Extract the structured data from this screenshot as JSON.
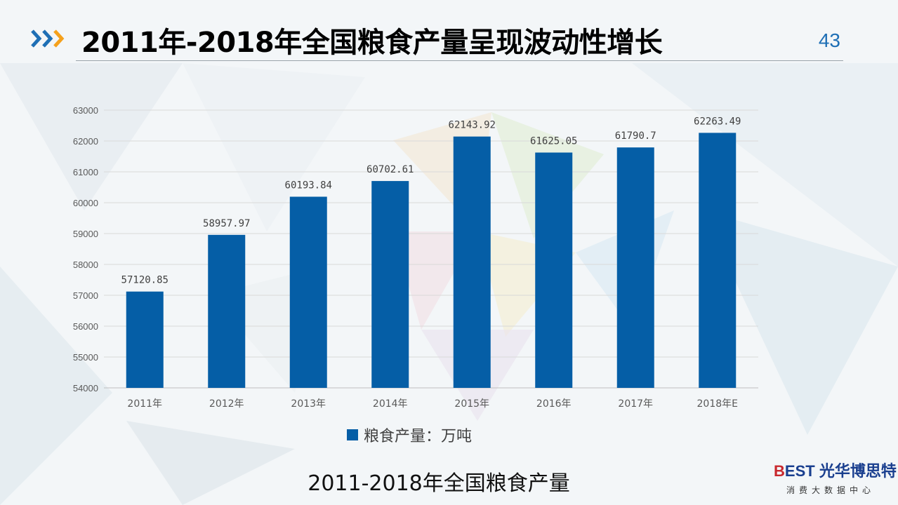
{
  "header": {
    "title": "2011年-2018年全国粮食产量呈现波动性增长",
    "page_number": "43",
    "accent_color": "#1e6fb5",
    "arrow_colors": [
      "#1e6fb5",
      "#f5a11c"
    ]
  },
  "chart_data": {
    "type": "bar",
    "categories": [
      "2011年",
      "2012年",
      "2013年",
      "2014年",
      "2015年",
      "2016年",
      "2017年",
      "2018年E"
    ],
    "series": [
      {
        "name": "粮食产量：万吨",
        "values": [
          57120.85,
          58957.97,
          60193.84,
          60702.61,
          62143.92,
          61625.05,
          61790.7,
          62263.49
        ],
        "labels": [
          "57120.85",
          "58957.97",
          "60193.84",
          "60702.61",
          "62143.92",
          "61625.05",
          "61790.7",
          "62263.49"
        ],
        "color": "#055ea6"
      }
    ],
    "ylim": [
      54000,
      63000
    ],
    "yticks": [
      54000,
      55000,
      56000,
      57000,
      58000,
      59000,
      60000,
      61000,
      62000,
      63000
    ],
    "grid": true,
    "legend_position": "bottom",
    "title": "",
    "xlabel": "",
    "ylabel": ""
  },
  "caption": "2011-2018年全国粮食产量",
  "brand": {
    "logo_red": "B",
    "logo_blue": "EST",
    "name": "光华博思特",
    "subtitle": "消费大数据中心"
  }
}
